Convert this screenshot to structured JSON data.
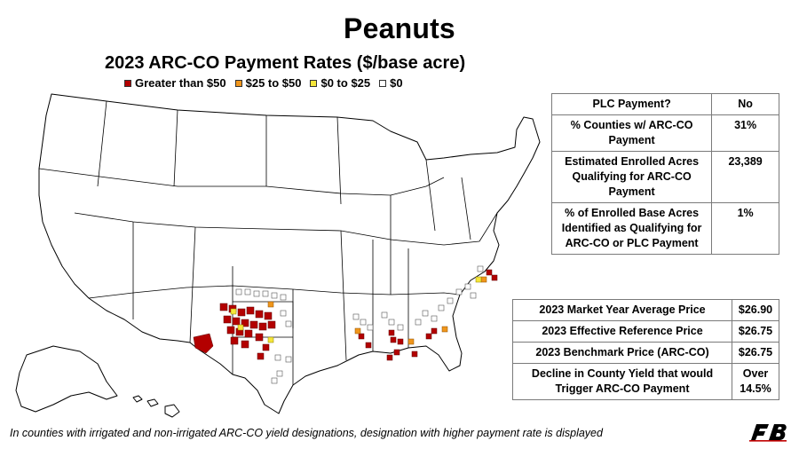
{
  "title": "Peanuts",
  "subtitle": "2023 ARC-CO Payment Rates ($/base acre)",
  "legend": [
    {
      "label": "Greater than $50",
      "color": "#b30000"
    },
    {
      "label": "$25 to $50",
      "color": "#f0961c"
    },
    {
      "label": "$0 to $25",
      "color": "#f5e63a"
    },
    {
      "label": "$0",
      "color": "#ffffff"
    }
  ],
  "plc_table": [
    {
      "question": "PLC Payment?",
      "answer": "No"
    },
    {
      "question": "% Counties w/ ARC-CO Payment",
      "answer": "31%"
    },
    {
      "question": "Estimated Enrolled Acres Qualifying for ARC-CO Payment",
      "answer": "23,389"
    },
    {
      "question": "% of Enrolled Base Acres Identified as Qualifying for ARC-CO or PLC Payment",
      "answer": "1%"
    }
  ],
  "price_table": [
    {
      "question": "2023 Market Year Average Price",
      "answer": "$26.90"
    },
    {
      "question": "2023 Effective Reference Price",
      "answer": "$26.75"
    },
    {
      "question": "2023 Benchmark Price (ARC-CO)",
      "answer": "$26.75"
    },
    {
      "question": "Decline in County Yield that would Trigger ARC-CO Payment",
      "answer": "Over 14.5%"
    }
  ],
  "footnote": "In counties with irrigated and non-irrigated ARC-CO yield designations, designation with higher payment rate is displayed",
  "logo_text": "FB"
}
